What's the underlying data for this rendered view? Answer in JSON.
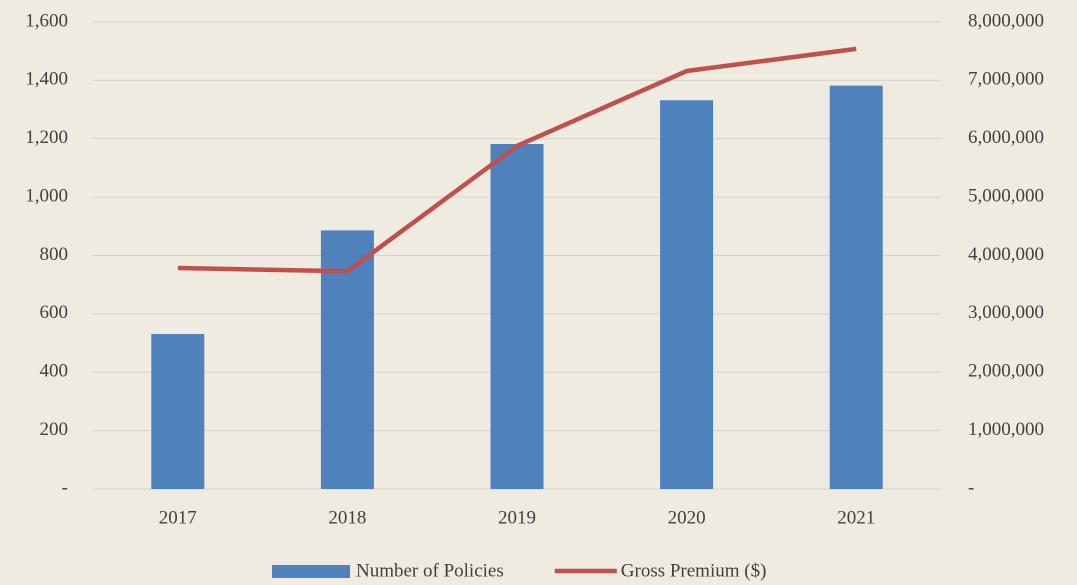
{
  "chart_data": {
    "type": "bar-line",
    "categories": [
      "2017",
      "2018",
      "2019",
      "2020",
      "2021"
    ],
    "series": [
      {
        "name": "Number of Policies",
        "type": "bar",
        "color": "#4f81bd",
        "values": [
          531,
          886,
          1182,
          1332,
          1382
        ]
      },
      {
        "name": "Gross Premium ($)",
        "type": "line",
        "axis": "y2",
        "color": "#c0504d",
        "values": [
          3786000,
          3730000,
          5876000,
          7160000,
          7540000
        ]
      }
    ],
    "ylim": [
      0,
      1600
    ],
    "yticks": [
      {
        "value": 0,
        "label": "-"
      },
      200,
      400,
      600,
      800,
      {
        "value": 1000,
        "label": "1,000"
      },
      {
        "value": 1200,
        "label": "1,200"
      },
      {
        "value": 1400,
        "label": "1,400"
      },
      {
        "value": 1600,
        "label": "1,600"
      }
    ],
    "y2lim": [
      0,
      8000000
    ],
    "y2ticks": [
      {
        "value": 0,
        "label": "-"
      },
      {
        "value": 1000000,
        "label": "1,000,000"
      },
      {
        "value": 2000000,
        "label": "2,000,000"
      },
      {
        "value": 3000000,
        "label": "3,000,000"
      },
      {
        "value": 4000000,
        "label": "4,000,000"
      },
      {
        "value": 5000000,
        "label": "5,000,000"
      },
      {
        "value": 6000000,
        "label": "6,000,000"
      },
      {
        "value": 7000000,
        "label": "7,000,000"
      },
      {
        "value": 8000000,
        "label": "8,000,000"
      }
    ],
    "grid": true,
    "legend": "bottom"
  }
}
